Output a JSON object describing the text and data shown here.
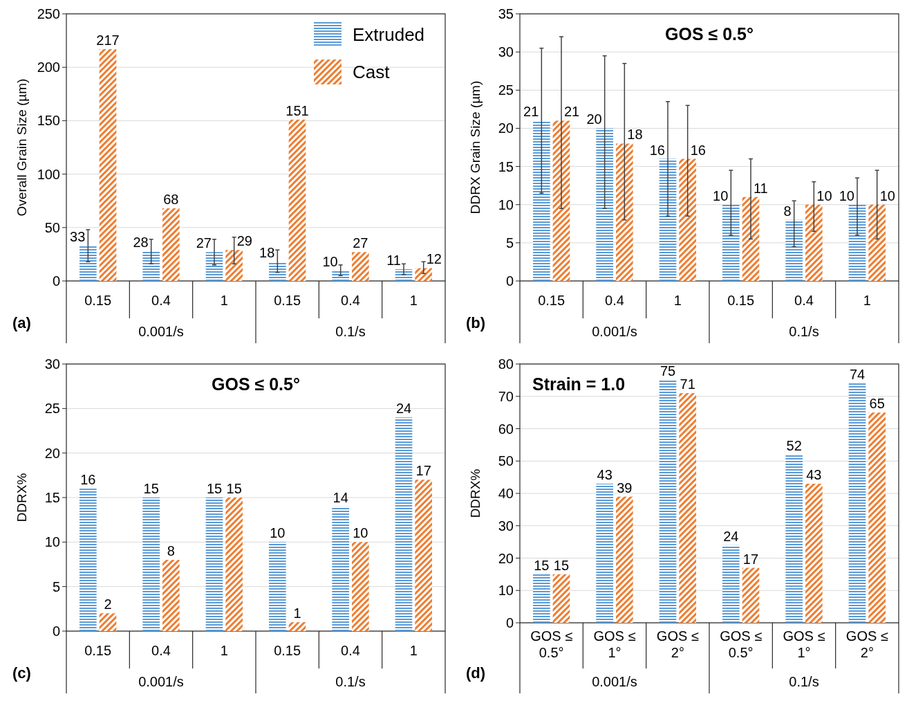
{
  "chart_data": [
    {
      "type": "bar",
      "ylabel": "Overall Grain Size (µm)",
      "categories": [
        "0.15",
        "0.4",
        "1",
        "0.15",
        "0.4",
        "1"
      ],
      "annotations": [
        "(a)",
        "0.001/s",
        "0.1/s"
      ],
      "series": [
        {
          "name": "Extruded",
          "color": "#5b9bd5",
          "values": [
            33,
            28,
            27,
            18,
            10,
            11
          ],
          "errors": [
            [
              18,
              48
            ],
            [
              16,
              39
            ],
            [
              15,
              39
            ],
            [
              8,
              29
            ],
            [
              5,
              15
            ],
            [
              6,
              16
            ]
          ]
        },
        {
          "name": "Cast",
          "color": "#ed7d31",
          "values": [
            217,
            68,
            29,
            151,
            27,
            12
          ],
          "errors": [
            null,
            null,
            [
              16,
              41
            ],
            null,
            null,
            [
              7,
              18
            ]
          ]
        }
      ],
      "ylim": [
        0,
        250
      ],
      "yticks": [
        0,
        50,
        100,
        150,
        200,
        250
      ],
      "grid": "y",
      "legend": "top right",
      "data_labels": true
    },
    {
      "type": "bar",
      "title": "GOS ≤ 0.5°",
      "ylabel": "DDRX Grain Size (µm)",
      "categories": [
        "0.15",
        "0.4",
        "1",
        "0.15",
        "0.4",
        "1"
      ],
      "annotations": [
        "(b)",
        "0.001/s",
        "0.1/s"
      ],
      "series": [
        {
          "color": "#5b9bd5",
          "values": [
            21,
            20,
            16,
            10,
            8,
            10
          ],
          "errors": [
            [
              11.5,
              30.5
            ],
            [
              9.5,
              29.5
            ],
            [
              8.5,
              23.5
            ],
            [
              6,
              14.5
            ],
            [
              4.5,
              10.5
            ],
            [
              6,
              13.5
            ]
          ]
        },
        {
          "color": "#ed7d31",
          "values": [
            21,
            18,
            16,
            11,
            10,
            10
          ],
          "errors": [
            [
              9.5,
              32
            ],
            [
              8,
              28.5
            ],
            [
              8.5,
              23
            ],
            [
              5.5,
              16
            ],
            [
              6.5,
              13
            ],
            [
              5.5,
              14.5
            ]
          ]
        }
      ],
      "ylim": [
        0,
        35
      ],
      "yticks": [
        0,
        5,
        10,
        15,
        20,
        25,
        30,
        35
      ],
      "grid": "y",
      "data_labels": true
    },
    {
      "type": "bar",
      "title": "GOS ≤ 0.5°",
      "ylabel": "DDRX%",
      "categories": [
        "0.15",
        "0.4",
        "1",
        "0.15",
        "0.4",
        "1"
      ],
      "annotations": [
        "(c)",
        "0.001/s",
        "0.1/s"
      ],
      "series": [
        {
          "color": "#5b9bd5",
          "values": [
            16,
            15,
            15,
            10,
            14,
            24
          ]
        },
        {
          "color": "#ed7d31",
          "values": [
            2,
            8,
            15,
            1,
            10,
            17
          ]
        }
      ],
      "ylim": [
        0,
        30
      ],
      "yticks": [
        0,
        5,
        10,
        15,
        20,
        25,
        30
      ],
      "grid": "y",
      "data_labels": true
    },
    {
      "type": "bar",
      "title": "Strain = 1.0",
      "ylabel": "DDRX%",
      "categories": [
        "GOS ≤ 0.5°",
        "GOS ≤ 1°",
        "GOS ≤ 2°",
        "GOS ≤ 0.5°",
        "GOS ≤ 1°",
        "GOS ≤ 2°"
      ],
      "annotations": [
        "(d)",
        "0.001/s",
        "0.1/s"
      ],
      "series": [
        {
          "color": "#5b9bd5",
          "values": [
            15,
            43,
            75,
            24,
            52,
            74
          ]
        },
        {
          "color": "#ed7d31",
          "values": [
            15,
            39,
            71,
            17,
            43,
            65
          ]
        }
      ],
      "ylim": [
        0,
        80
      ],
      "yticks": [
        0,
        10,
        20,
        30,
        40,
        50,
        60,
        70,
        80
      ],
      "grid": "y",
      "data_labels": true
    }
  ]
}
